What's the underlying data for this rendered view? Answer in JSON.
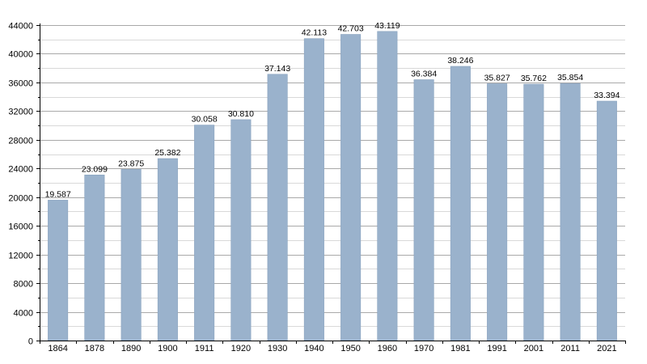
{
  "chart_data": {
    "type": "bar",
    "title": "",
    "xlabel": "",
    "ylabel": "",
    "categories": [
      "1864",
      "1878",
      "1890",
      "1900",
      "1911",
      "1920",
      "1930",
      "1940",
      "1950",
      "1960",
      "1970",
      "1981",
      "1991",
      "2001",
      "2011",
      "2021"
    ],
    "values": [
      19587,
      23099,
      23875,
      25382,
      30058,
      30810,
      37143,
      42113,
      42703,
      43119,
      36384,
      38246,
      35827,
      35762,
      35854,
      33394
    ],
    "value_labels": [
      "19.587",
      "23.099",
      "23.875",
      "25.382",
      "30.058",
      "30.810",
      "37.143",
      "42.113",
      "42.703",
      "43.119",
      "36.384",
      "38.246",
      "35.827",
      "35.762",
      "35.854",
      "33.394"
    ],
    "ylim": [
      0,
      44000
    ],
    "yticks": [
      0,
      4000,
      8000,
      12000,
      16000,
      20000,
      24000,
      28000,
      32000,
      36000,
      40000,
      44000
    ],
    "grid": true,
    "legend": "none",
    "colors": {
      "bar": "#9ab2cc",
      "bar_edge": "#8aa3bf",
      "grid_major": "#a9a9a9",
      "grid_minor": "#d9d9d9",
      "axis": "#000000"
    }
  }
}
